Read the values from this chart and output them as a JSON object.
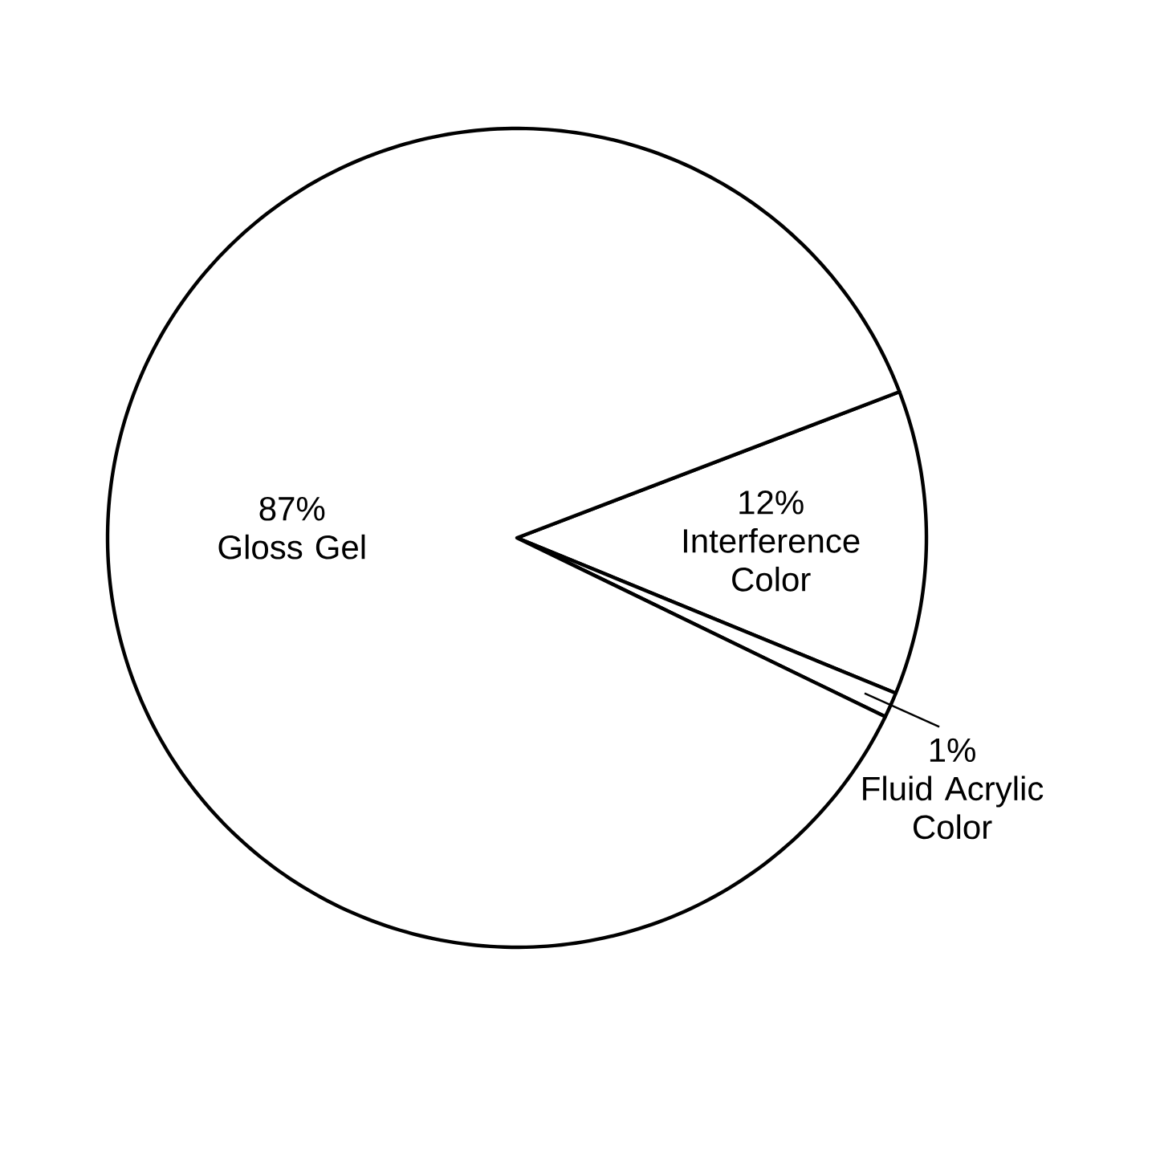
{
  "chart_data": {
    "type": "pie",
    "categories": [
      "Interference Color",
      "Fluid Acrylic Color",
      "Gloss Gel"
    ],
    "values": [
      12,
      1,
      87
    ],
    "value_labels": [
      "12%",
      "1%",
      "87%"
    ],
    "colors": [
      "#ffffff",
      "#ffffff",
      "#ffffff"
    ]
  }
}
